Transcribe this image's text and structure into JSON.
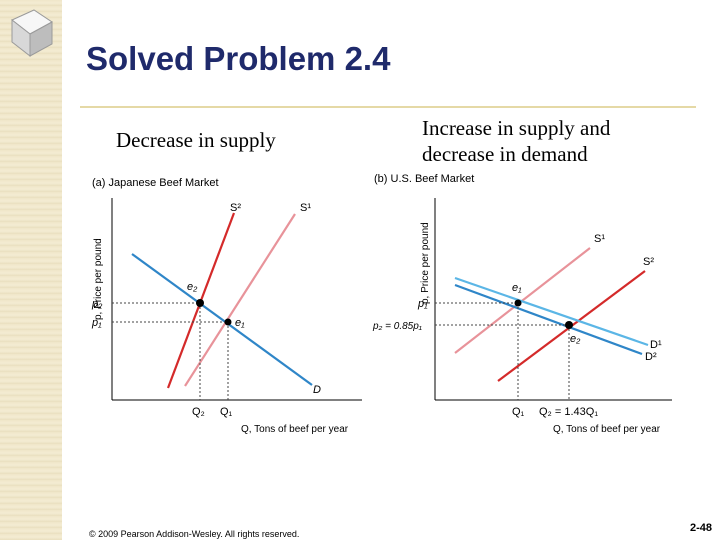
{
  "slide": {
    "title": "Solved Problem 2.4",
    "caption_left": "Decrease in supply",
    "caption_right": "Increase in supply and decrease in demand",
    "footer": "© 2009 Pearson Addison-Wesley. All rights reserved.",
    "slide_number": "2-48"
  },
  "panel_a": {
    "title": "(a) Japanese Beef Market",
    "ylabel": "p, Price per pound",
    "xlabel": "Q, Tons of beef per year",
    "supply_new": "S²",
    "supply_old": "S¹",
    "demand": "D",
    "eq_new": "e₂",
    "eq_old": "e₁",
    "p2": "p₂",
    "p1": "p₁",
    "q2": "Q₂",
    "q1": "Q₁"
  },
  "panel_b": {
    "title": "(b) U.S. Beef Market",
    "ylabel": "p, Price per pound",
    "xlabel": "Q, Tons of beef per year",
    "supply_old": "S¹",
    "supply_new": "S²",
    "demand_old": "D¹",
    "demand_new": "D²",
    "eq_old": "e₁",
    "eq_new": "e₂",
    "p1": "p₁",
    "p2": "p₂ = 0.85p₁",
    "q1": "Q₁",
    "q2": "Q₂ = 1.43Q₁"
  },
  "colors": {
    "title": "#1f2a6b",
    "supply_old": "#e8939a",
    "supply_new": "#d42a2a",
    "demand": "#2f86c8",
    "demand_light": "#5bb6e6"
  }
}
